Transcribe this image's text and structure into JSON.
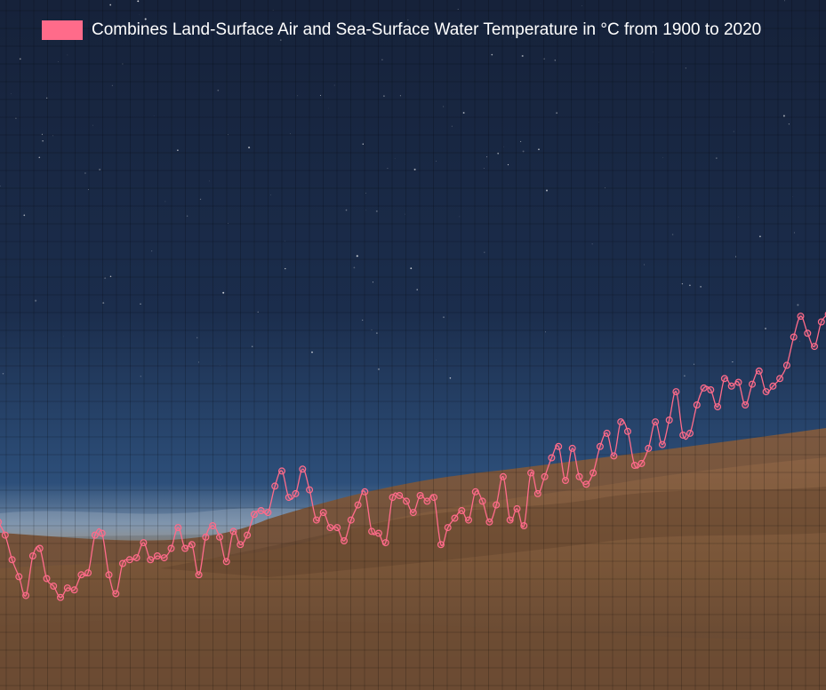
{
  "legend": {
    "label": "Combines Land-Surface Air and Sea-Surface Water Temperature in °C from 1900 to 2020",
    "color": "#ff6b8a"
  },
  "chart_data": {
    "type": "line",
    "x": [
      1900,
      1901,
      1902,
      1903,
      1904,
      1905,
      1906,
      1907,
      1908,
      1909,
      1910,
      1911,
      1912,
      1913,
      1914,
      1915,
      1916,
      1917,
      1918,
      1919,
      1920,
      1921,
      1922,
      1923,
      1924,
      1925,
      1926,
      1927,
      1928,
      1929,
      1930,
      1931,
      1932,
      1933,
      1934,
      1935,
      1936,
      1937,
      1938,
      1939,
      1940,
      1941,
      1942,
      1943,
      1944,
      1945,
      1946,
      1947,
      1948,
      1949,
      1950,
      1951,
      1952,
      1953,
      1954,
      1955,
      1956,
      1957,
      1958,
      1959,
      1960,
      1961,
      1962,
      1963,
      1964,
      1965,
      1966,
      1967,
      1968,
      1969,
      1970,
      1971,
      1972,
      1973,
      1974,
      1975,
      1976,
      1977,
      1978,
      1979,
      1980,
      1981,
      1982,
      1983,
      1984,
      1985,
      1986,
      1987,
      1988,
      1989,
      1990,
      1991,
      1992,
      1993,
      1994,
      1995,
      1996,
      1997,
      1998,
      1999,
      2000,
      2001,
      2002,
      2003,
      2004,
      2005,
      2006,
      2007,
      2008,
      2009,
      2010,
      2011,
      2012,
      2013,
      2014,
      2015,
      2016,
      2017,
      2018,
      2019,
      2020
    ],
    "series": [
      {
        "name": "Combines Land-Surface Air and Sea-Surface Water Temperature in °C from 1900 to 2020",
        "color": "#ff6b8a",
        "values": [
          -0.08,
          -0.15,
          -0.28,
          -0.37,
          -0.47,
          -0.26,
          -0.22,
          -0.38,
          -0.42,
          -0.48,
          -0.43,
          -0.44,
          -0.36,
          -0.35,
          -0.15,
          -0.14,
          -0.36,
          -0.46,
          -0.3,
          -0.28,
          -0.27,
          -0.19,
          -0.28,
          -0.26,
          -0.27,
          -0.22,
          -0.11,
          -0.22,
          -0.2,
          -0.36,
          -0.16,
          -0.1,
          -0.16,
          -0.29,
          -0.13,
          -0.2,
          -0.15,
          -0.04,
          -0.02,
          -0.03,
          0.11,
          0.19,
          0.05,
          0.07,
          0.2,
          0.09,
          -0.07,
          -0.03,
          -0.11,
          -0.11,
          -0.18,
          -0.07,
          0.01,
          0.08,
          -0.13,
          -0.14,
          -0.19,
          0.05,
          0.06,
          0.03,
          -0.03,
          0.06,
          0.03,
          0.05,
          -0.2,
          -0.11,
          -0.06,
          -0.02,
          -0.07,
          0.08,
          0.03,
          -0.08,
          0.01,
          0.16,
          -0.07,
          -0.01,
          -0.1,
          0.18,
          0.07,
          0.16,
          0.26,
          0.32,
          0.14,
          0.31,
          0.16,
          0.12,
          0.18,
          0.32,
          0.39,
          0.27,
          0.45,
          0.4,
          0.22,
          0.23,
          0.31,
          0.45,
          0.33,
          0.46,
          0.61,
          0.38,
          0.39,
          0.54,
          0.63,
          0.62,
          0.53,
          0.68,
          0.64,
          0.66,
          0.54,
          0.65,
          0.72,
          0.61,
          0.64,
          0.68,
          0.75,
          0.9,
          1.01,
          0.92,
          0.85,
          0.98,
          1.02
        ]
      }
    ],
    "xlim": [
      1900,
      2020
    ],
    "ylim": [
      -0.5,
      1.02
    ],
    "grid": true,
    "legend_position": "top-left"
  }
}
